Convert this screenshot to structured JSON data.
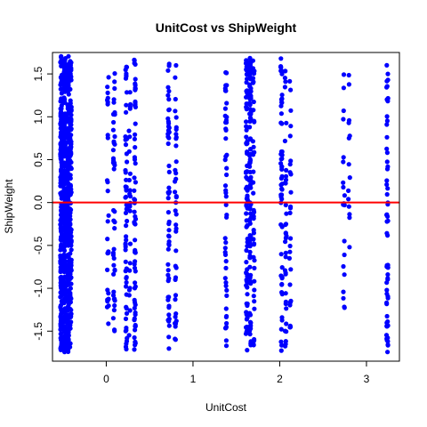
{
  "chart_data": {
    "type": "scatter",
    "title": "UnitCost vs ShipWeight",
    "xlabel": "UnitCost",
    "ylabel": "ShipWeight",
    "xlim": [
      -0.62,
      3.38
    ],
    "ylim": [
      -1.85,
      1.75
    ],
    "xticks": [
      0,
      1,
      2,
      3
    ],
    "yticks": [
      -1.5,
      -1.0,
      -0.5,
      0.0,
      0.5,
      1.0,
      1.5
    ],
    "xtick_labels": [
      "0",
      "1",
      "2",
      "3"
    ],
    "ytick_labels": [
      "-1.5",
      "-1.0",
      "-0.5",
      "0.0",
      "0.5",
      "1.0",
      "1.5"
    ],
    "point_color": "#0000ff",
    "reference_line": {
      "y": 0.0,
      "color": "#ff0000"
    },
    "columns": [
      {
        "x": -0.52,
        "y_range": [
          -1.75,
          1.72
        ],
        "count": 220
      },
      {
        "x": -0.48,
        "y_range": [
          -1.75,
          1.72
        ],
        "count": 220
      },
      {
        "x": -0.44,
        "y_range": [
          -1.75,
          1.72
        ],
        "count": 200
      },
      {
        "x": -0.41,
        "y_range": [
          -1.7,
          1.65
        ],
        "count": 120
      },
      {
        "x": 0.02,
        "y_range": [
          -1.55,
          1.52
        ],
        "count": 28
      },
      {
        "x": 0.09,
        "y_range": [
          -1.7,
          1.62
        ],
        "count": 45
      },
      {
        "x": 0.23,
        "y_range": [
          -1.75,
          1.68
        ],
        "count": 60
      },
      {
        "x": 0.27,
        "y_range": [
          -1.6,
          1.35
        ],
        "count": 25
      },
      {
        "x": 0.33,
        "y_range": [
          -1.72,
          1.7
        ],
        "count": 65
      },
      {
        "x": 0.72,
        "y_range": [
          -1.75,
          1.68
        ],
        "count": 55
      },
      {
        "x": 0.8,
        "y_range": [
          -1.6,
          1.65
        ],
        "count": 40
      },
      {
        "x": 1.38,
        "y_range": [
          -1.72,
          1.68
        ],
        "count": 50
      },
      {
        "x": 1.62,
        "y_range": [
          -1.75,
          1.7
        ],
        "count": 90
      },
      {
        "x": 1.66,
        "y_range": [
          -1.75,
          1.7
        ],
        "count": 90
      },
      {
        "x": 1.7,
        "y_range": [
          -1.72,
          1.68
        ],
        "count": 40
      },
      {
        "x": 2.02,
        "y_range": [
          -1.75,
          1.68
        ],
        "count": 55
      },
      {
        "x": 2.07,
        "y_range": [
          -1.72,
          1.6
        ],
        "count": 35
      },
      {
        "x": 2.12,
        "y_range": [
          -1.75,
          1.5
        ],
        "count": 25
      },
      {
        "x": 2.74,
        "y_range": [
          -1.75,
          1.58
        ],
        "count": 20
      },
      {
        "x": 2.8,
        "y_range": [
          -1.55,
          1.55
        ],
        "count": 14
      },
      {
        "x": 3.24,
        "y_range": [
          -1.75,
          1.68
        ],
        "count": 60
      }
    ]
  }
}
